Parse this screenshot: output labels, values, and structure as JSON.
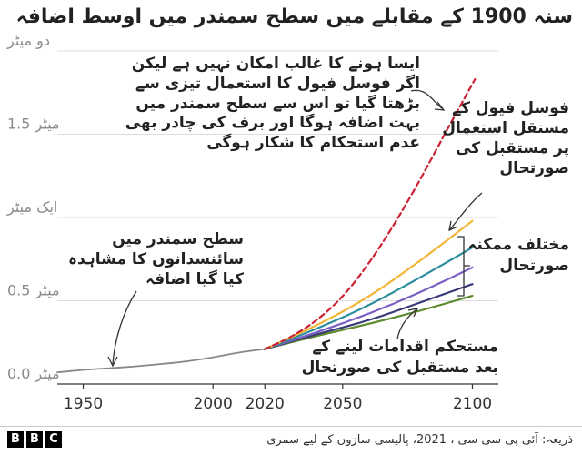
{
  "title": "سنہ 1900 کے مقابلے میں سطح سمندر میں اوسط اضافہ",
  "annotations": {
    "uncertain_warning": [
      "ایسا ہونے کا غالب امکان نہیں ہے لیکن",
      "اگر فوسل فیول کا استعمال تیزی سے",
      "بڑھتا گیا تو اس سے سطح سمندر میں",
      "بہت اضافہ ہوگا اور برف کی چادر بھی",
      "عدم استحکام کا شکار ہوگی"
    ],
    "fossil_fuel_scenario": [
      "فوسل فیول کے",
      "مستقل استعمال",
      "پر مستقبل کی",
      "صورتحال"
    ],
    "possible_scenarios": [
      "مختلف ممکنہ",
      "صورتحال"
    ],
    "observed_rise": [
      "سطح سمندر میں",
      "سائنسدانوں کا مشاہدہ",
      "کیا گیا اضافہ"
    ],
    "strong_action": [
      "مستحکم اقدامات لینے کے",
      "بعد مستقبل کی صورتحال"
    ]
  },
  "footer": {
    "logo_letters": [
      "B",
      "B",
      "C"
    ],
    "source": "ذریعہ: آئی پی سی سی ، 2021، پالیسی سازوں کے لیے سمری"
  },
  "chart_data": {
    "type": "line",
    "title": "سنہ 1900 کے مقابلے میں سطح سمندر میں اوسط اضافہ",
    "xlabel": "",
    "ylabel": "",
    "xlim": [
      1940,
      2110
    ],
    "ylim": [
      0,
      2
    ],
    "x_ticks": [
      {
        "value": 1950,
        "label": "1950"
      },
      {
        "value": 2000,
        "label": "2000"
      },
      {
        "value": 2020,
        "label": "2020"
      },
      {
        "value": 2050,
        "label": "2050"
      },
      {
        "value": 2100,
        "label": "2100"
      }
    ],
    "y_ticks": [
      {
        "value": 0,
        "label": "0.0 میٹر"
      },
      {
        "value": 0.5,
        "label": "0.5 میٹر"
      },
      {
        "value": 1,
        "label": "ایک میٹر"
      },
      {
        "value": 1.5,
        "label": "1.5 میٹر"
      },
      {
        "value": 2,
        "label": "دو میٹر"
      }
    ],
    "grid": "horizontal",
    "series": [
      {
        "id": "observed",
        "color": "#888888",
        "style": "solid",
        "x": [
          1940,
          1950,
          1960,
          1970,
          1980,
          1990,
          2000,
          2010,
          2020
        ],
        "y": [
          0.07,
          0.085,
          0.095,
          0.105,
          0.12,
          0.135,
          0.16,
          0.19,
          0.21
        ]
      },
      {
        "id": "high-emissions-low-likelihood",
        "color": "#cc2233",
        "style": "dashed",
        "x": [
          2020,
          2030,
          2040,
          2050,
          2060,
          2070,
          2080,
          2090,
          2101
        ],
        "y": [
          0.21,
          0.28,
          0.38,
          0.52,
          0.72,
          0.96,
          1.23,
          1.52,
          1.83
        ]
      },
      {
        "id": "scenario-1",
        "color": "#f0b73a",
        "style": "solid",
        "x": [
          2020,
          2040,
          2060,
          2080,
          2100
        ],
        "y": [
          0.21,
          0.35,
          0.52,
          0.74,
          0.98
        ]
      },
      {
        "id": "scenario-2",
        "color": "#2b8c9e",
        "style": "solid",
        "x": [
          2020,
          2040,
          2060,
          2080,
          2100
        ],
        "y": [
          0.21,
          0.33,
          0.47,
          0.64,
          0.82
        ]
      },
      {
        "id": "scenario-3",
        "color": "#7b60c4",
        "style": "solid",
        "x": [
          2020,
          2040,
          2060,
          2080,
          2100
        ],
        "y": [
          0.21,
          0.31,
          0.42,
          0.55,
          0.7
        ]
      },
      {
        "id": "scenario-4",
        "color": "#3a3a78",
        "style": "solid",
        "x": [
          2020,
          2040,
          2060,
          2080,
          2100
        ],
        "y": [
          0.21,
          0.3,
          0.38,
          0.49,
          0.6
        ]
      },
      {
        "id": "scenario-5",
        "color": "#5c8a2d",
        "style": "solid",
        "x": [
          2020,
          2040,
          2060,
          2080,
          2100
        ],
        "y": [
          0.21,
          0.29,
          0.36,
          0.44,
          0.53
        ]
      }
    ]
  }
}
